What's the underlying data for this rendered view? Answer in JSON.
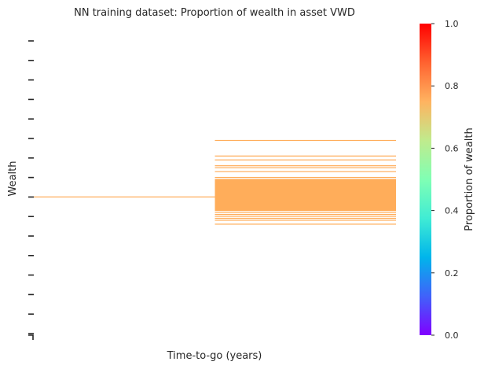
{
  "chart_data": {
    "type": "heatmap",
    "title": "NN training dataset: Proportion of wealth in asset VWD",
    "xlabel": "Time-to-go (years)",
    "ylabel": "Wealth",
    "colorbar": {
      "label": "Proportion of wealth",
      "colormap": "rainbow",
      "range": [
        0.0,
        1.0
      ],
      "ticks": [
        "0.0",
        "0.2",
        "0.4",
        "0.6",
        "0.8",
        "1.0"
      ]
    },
    "y_tick_count": 16,
    "x_tick_labels_shown": false,
    "y_tick_labels_shown": false,
    "grid": false,
    "columns": [
      {
        "column": 1,
        "value": 0.75,
        "color": "#ffad5a",
        "wealth_rows_filled": [
          8.9
        ]
      },
      {
        "column": 2,
        "value": 0.75,
        "color": "#ffad5a",
        "wealth_rows_filled": [
          6.0,
          6.8,
          7.0,
          7.3,
          7.4,
          7.6,
          7.9,
          8.0,
          8.05,
          8.1,
          8.15,
          8.2,
          8.25,
          8.3,
          8.35,
          8.4,
          8.45,
          8.5,
          8.55,
          8.6,
          8.65,
          8.7,
          8.75,
          8.8,
          8.85,
          8.9,
          8.95,
          9.0,
          9.05,
          9.1,
          9.15,
          9.2,
          9.25,
          9.3,
          9.35,
          9.4,
          9.5,
          9.6,
          9.7,
          9.8,
          9.9,
          10.0,
          10.1,
          10.3
        ]
      }
    ]
  }
}
